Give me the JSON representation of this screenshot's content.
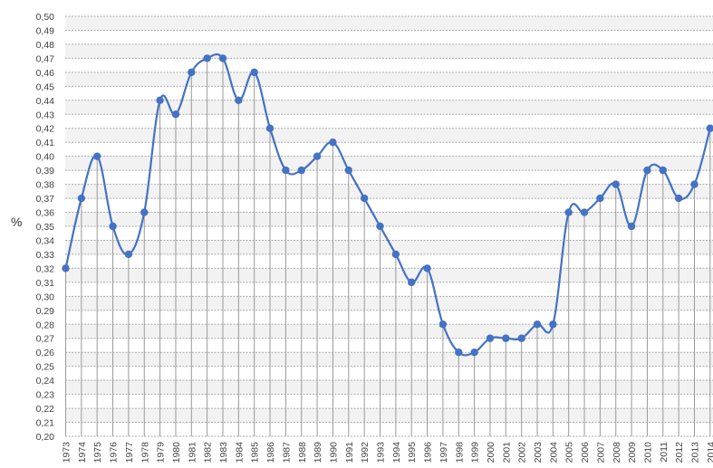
{
  "chart_data": {
    "type": "line",
    "title": "",
    "xlabel": "",
    "ylabel": "%",
    "ylim": [
      0.2,
      0.5
    ],
    "ytick_step": 0.01,
    "grid": true,
    "line_color": "#4472C4",
    "grid_color": "#aaaaaa",
    "band_color": "#f2f2f2",
    "x": [
      "1973",
      "1974",
      "1975",
      "1976",
      "1977",
      "1978",
      "1979",
      "1980",
      "1981",
      "1982",
      "1983",
      "1984",
      "1985",
      "1986",
      "1987",
      "1988",
      "1989",
      "1990",
      "1991",
      "1992",
      "1993",
      "1994",
      "1995",
      "1996",
      "1997",
      "1998",
      "1999",
      "2000",
      "2001",
      "2002",
      "2003",
      "2004",
      "2005",
      "2006",
      "2007",
      "2008",
      "2009",
      "2010",
      "2011",
      "2012",
      "2013",
      "2014"
    ],
    "values": [
      0.32,
      0.37,
      0.4,
      0.35,
      0.33,
      0.36,
      0.44,
      0.43,
      0.46,
      0.47,
      0.47,
      0.44,
      0.46,
      0.42,
      0.39,
      0.39,
      0.4,
      0.41,
      0.39,
      0.37,
      0.35,
      0.33,
      0.31,
      0.32,
      0.28,
      0.26,
      0.26,
      0.27,
      0.27,
      0.27,
      0.28,
      0.28,
      0.36,
      0.36,
      0.37,
      0.38,
      0.35,
      0.39,
      0.39,
      0.37,
      0.38,
      0.42
    ],
    "ytick_labels": [
      "0,20",
      "0,21",
      "0,22",
      "0,23",
      "0,24",
      "0,25",
      "0,26",
      "0,27",
      "0,28",
      "0,29",
      "0,30",
      "0,31",
      "0,32",
      "0,33",
      "0,34",
      "0,35",
      "0,36",
      "0,37",
      "0,38",
      "0,39",
      "0,40",
      "0,41",
      "0,42",
      "0,43",
      "0,44",
      "0,45",
      "0,46",
      "0,47",
      "0,48",
      "0,49",
      "0,50"
    ]
  }
}
